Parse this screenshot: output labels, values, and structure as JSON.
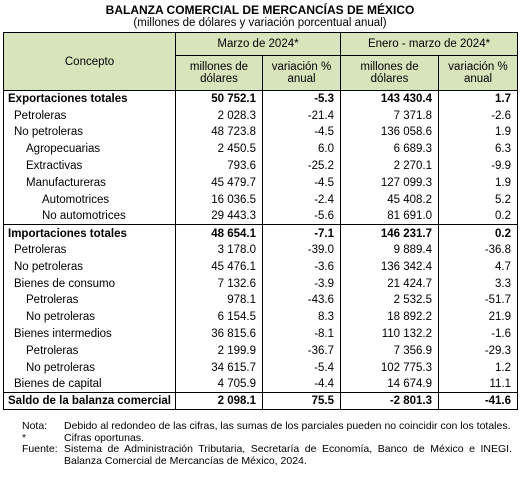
{
  "header": {
    "title": "BALANZA COMERCIAL DE MERCANCÍAS DE MÉXICO",
    "subtitle": "(millones de dólares y variación porcentual anual)"
  },
  "table": {
    "concept_header": "Concepto",
    "period_headers": [
      "Marzo de 2024*",
      "Enero - marzo de 2024*"
    ],
    "sub_headers": [
      "millones de dólares",
      "variación % anual",
      "millones de dólares",
      "variación % anual"
    ],
    "rows": [
      [
        "Exportaciones totales",
        "50 752.1",
        "-5.3",
        "143 430.4",
        "1.7"
      ],
      [
        "Petroleras",
        "2 028.3",
        "-21.4",
        "7 371.8",
        "-2.6"
      ],
      [
        "No petroleras",
        "48 723.8",
        "-4.5",
        "136 058.6",
        "1.9"
      ],
      [
        "Agropecuarias",
        "2 450.5",
        "6.0",
        "6 689.3",
        "6.3"
      ],
      [
        "Extractivas",
        "793.6",
        "-25.2",
        "2 270.1",
        "-9.9"
      ],
      [
        "Manufactureras",
        "45 479.7",
        "-4.5",
        "127 099.3",
        "1.9"
      ],
      [
        "Automotrices",
        "16 036.5",
        "-2.4",
        "45 408.2",
        "5.2"
      ],
      [
        "No automotrices",
        "29 443.3",
        "-5.6",
        "81 691.0",
        "0.2"
      ],
      [
        "Importaciones totales",
        "48 654.1",
        "-7.1",
        "146 231.7",
        "0.2"
      ],
      [
        "Petroleras",
        "3 178.0",
        "-39.0",
        "9 889.4",
        "-36.8"
      ],
      [
        "No petroleras",
        "45 476.1",
        "-3.6",
        "136 342.4",
        "4.7"
      ],
      [
        "Bienes de consumo",
        "7 132.6",
        "-3.9",
        "21 424.7",
        "3.3"
      ],
      [
        "Petroleras",
        "978.1",
        "-43.6",
        "2 532.5",
        "-51.7"
      ],
      [
        "No petroleras",
        "6 154.5",
        "8.3",
        "18 892.2",
        "21.9"
      ],
      [
        "Bienes intermedios",
        "36 815.6",
        "-8.1",
        "110 132.2",
        "-1.6"
      ],
      [
        "Petroleras",
        "2 199.9",
        "-36.7",
        "7 356.9",
        "-29.3"
      ],
      [
        "No petroleras",
        "34 615.7",
        "-5.4",
        "102 775.3",
        "1.2"
      ],
      [
        "Bienes de capital",
        "4 705.9",
        "-4.4",
        "14 674.9",
        "11.1"
      ],
      [
        "Saldo de la balanza comercial",
        "2 098.1",
        "75.5",
        "-2 801.3",
        "-41.6"
      ]
    ]
  },
  "notes": [
    [
      "Nota:",
      "Debido al redondeo de las cifras, las sumas de los parciales pueden no coincidir con los totales."
    ],
    [
      "*",
      "Cifras oportunas."
    ],
    [
      "Fuente:",
      "Sistema de Administración Tributaria, Secretaría de Economía, Banco de México e INEGI. Balanza Comercial de Mercancías de México, 2024."
    ]
  ]
}
